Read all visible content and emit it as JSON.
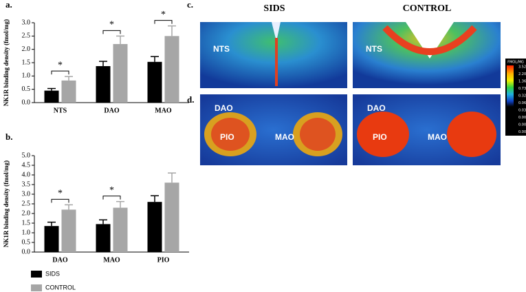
{
  "chart_data": [
    {
      "type": "bar",
      "label": "a.",
      "y_label": "NK1R binding density (fmol/mg)",
      "categories": [
        "NTS",
        "DAO",
        "MAO"
      ],
      "series": [
        {
          "name": "SIDS",
          "color": "#000000",
          "values": [
            0.45,
            1.37,
            1.53
          ],
          "errors": [
            0.08,
            0.18,
            0.2
          ]
        },
        {
          "name": "CONTROL",
          "color": "#a6a6a6",
          "values": [
            0.83,
            2.2,
            2.5
          ],
          "errors": [
            0.15,
            0.3,
            0.38
          ]
        }
      ],
      "ylim": [
        0,
        3
      ],
      "yticks": [
        {
          "value": 0,
          "label": "0.0"
        },
        0.5,
        {
          "value": 1,
          "label": "1.0"
        },
        1.5,
        {
          "value": 2,
          "label": "2.0"
        },
        2.5,
        {
          "value": 3,
          "label": "3.0"
        }
      ],
      "annotations": [
        {
          "text": "*",
          "category": "NTS"
        },
        {
          "text": "*",
          "category": "DAO"
        },
        {
          "text": "*",
          "category": "MAO"
        }
      ]
    },
    {
      "type": "bar",
      "label": "b.",
      "y_label": "NK1R binding density (fmol/mg)",
      "categories": [
        "DAO",
        "MAO",
        "PIO"
      ],
      "series": [
        {
          "name": "SIDS",
          "color": "#000000",
          "values": [
            1.35,
            1.45,
            2.6
          ],
          "errors": [
            0.2,
            0.22,
            0.32
          ]
        },
        {
          "name": "CONTROL",
          "color": "#a6a6a6",
          "values": [
            2.2,
            2.3,
            3.6
          ],
          "errors": [
            0.25,
            0.32,
            0.5
          ]
        }
      ],
      "ylim": [
        0,
        5
      ],
      "yticks": [
        {
          "value": 0,
          "label": "0.0"
        },
        0.5,
        {
          "value": 1,
          "label": "1.0"
        },
        1.5,
        {
          "value": 2,
          "label": "2.0"
        },
        2.5,
        {
          "value": 3,
          "label": "3.0"
        },
        3.5,
        {
          "value": 4,
          "label": "4.0"
        },
        4.5,
        {
          "value": 5,
          "label": "5.0"
        }
      ],
      "annotations": [
        {
          "text": "*",
          "category": "DAO"
        },
        {
          "text": "*",
          "category": "MAO"
        }
      ]
    }
  ],
  "images": {
    "column_titles": [
      "SIDS",
      "CONTROL"
    ],
    "panels": [
      {
        "label": "c.",
        "sids_labels": [
          "NTS"
        ],
        "control_labels": [
          "NTS"
        ]
      },
      {
        "label": "d.",
        "sids_labels": [
          "DAO",
          "PIO",
          "MAO"
        ],
        "control_labels": [
          "DAO",
          "PIO",
          "MAO"
        ]
      }
    ],
    "colorbar": {
      "title": "FMOL/MG",
      "labels": [
        "3.52",
        "2.20",
        "1.36",
        "0.73",
        "0.32",
        "0.06",
        "0.03",
        "0.00",
        "0.00",
        "0.00"
      ]
    }
  }
}
